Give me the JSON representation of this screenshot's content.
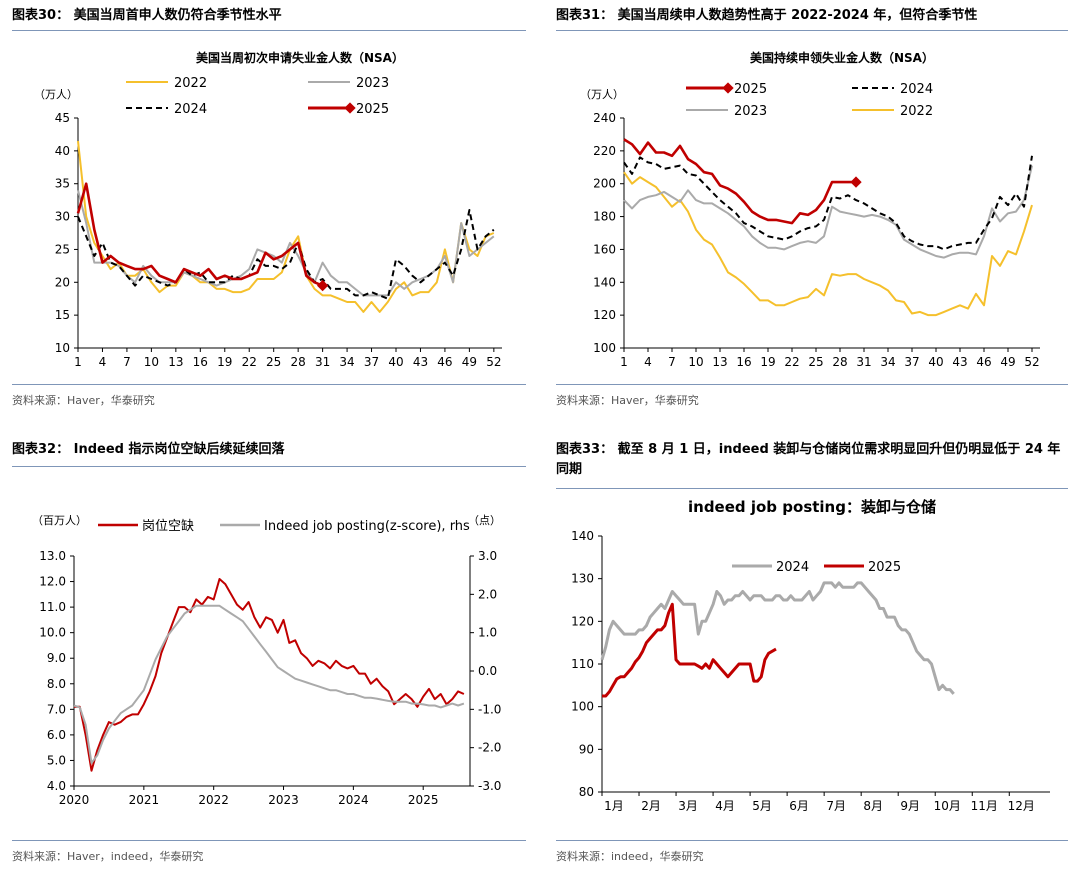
{
  "panels": [
    {
      "title": "图表30： 美国当周首申人数仍符合季节性水平",
      "source": "资料来源：Haver，华泰研究"
    },
    {
      "title": "图表31： 美国当周续申人数趋势性高于 2022-2024 年，但符合季节性",
      "source": "资料来源：Haver，华泰研究"
    },
    {
      "title": "图表32： Indeed 指示岗位空缺后续延续回落",
      "source": "资料来源：Haver，indeed，华泰研究"
    },
    {
      "title": "图表33： 截至 8 月 1 日，indeed 装卸与仓储岗位需求明显回升但仍明显低于 24 年同期",
      "source": "资料来源：indeed，华泰研究"
    }
  ],
  "colors": {
    "c2022": "#F5C02C",
    "c2023": "#AAAAAA",
    "c2024": "#000000",
    "c2025": "#C00000",
    "rule": "#7F96B8"
  },
  "chart_data": [
    {
      "type": "line",
      "title": "美国当周初次申请失业金人数（NSA）",
      "ylabel": "（万人）",
      "ylim": [
        10,
        45
      ],
      "yticks": [
        "10",
        "15",
        "20",
        "25",
        "30",
        "35",
        "40",
        "45"
      ],
      "xticks": [
        "1",
        "4",
        "7",
        "10",
        "13",
        "16",
        "19",
        "22",
        "25",
        "28",
        "31",
        "34",
        "37",
        "40",
        "43",
        "46",
        "49",
        "52"
      ],
      "xlim": [
        1,
        53
      ],
      "legend": [
        "2022",
        "2023",
        "2024",
        "2025"
      ],
      "series": [
        {
          "name": "2022",
          "key": "c2022",
          "style": "solid",
          "x_start": 1,
          "values": [
            41.5,
            30,
            26,
            24,
            22,
            23,
            21,
            21,
            22,
            20,
            18.5,
            19.5,
            19.5,
            21.5,
            21,
            20,
            20,
            19,
            19,
            18.5,
            18.5,
            19,
            20.5,
            20.5,
            20.5,
            21.5,
            25,
            27,
            21,
            19,
            18,
            18,
            17.5,
            17,
            17,
            15.5,
            17,
            15.5,
            17,
            19,
            20,
            18,
            18.5,
            18.5,
            20,
            25,
            20,
            29,
            25,
            24,
            27,
            27.5
          ]
        },
        {
          "name": "2023",
          "key": "c2023",
          "style": "solid",
          "x_start": 1,
          "values": [
            34,
            29,
            23,
            23,
            23,
            22.5,
            21,
            20,
            22.5,
            21,
            20,
            20,
            20,
            21.5,
            21,
            20.5,
            20,
            19.5,
            20,
            20.5,
            21,
            22,
            25,
            24.5,
            24,
            23,
            26,
            24,
            21.5,
            20,
            23,
            21,
            20,
            20,
            19,
            18,
            18,
            18,
            18,
            20,
            19,
            20,
            20.5,
            21,
            22,
            24,
            20,
            29,
            24,
            25,
            26,
            27
          ]
        },
        {
          "name": "2024",
          "key": "c2024",
          "style": "dash",
          "x_start": 1,
          "values": [
            30,
            27,
            24,
            26,
            23,
            22.5,
            21,
            19.5,
            21,
            20.5,
            20,
            19.5,
            20,
            22,
            21,
            21.5,
            20,
            20,
            20,
            21,
            20.5,
            21,
            23.5,
            22.5,
            22.5,
            22,
            23,
            26,
            22,
            20,
            20.5,
            19,
            19,
            19,
            18,
            18,
            18.5,
            18,
            17.5,
            23.5,
            22.5,
            21,
            20,
            21,
            22,
            23,
            21,
            25,
            31,
            25,
            27,
            28
          ]
        },
        {
          "name": "2025",
          "key": "c2025",
          "style": "solid",
          "x_start": 1,
          "values": [
            30.5,
            35,
            28,
            23,
            24,
            23,
            22.5,
            22,
            22,
            22.5,
            21,
            20.5,
            20,
            22,
            21.5,
            21,
            22,
            20.5,
            21,
            20.5,
            20.5,
            21,
            21.5,
            24.5,
            23.5,
            24,
            25,
            26,
            21,
            20,
            19.5
          ]
        }
      ]
    },
    {
      "type": "line",
      "title": "美国持续申领失业金人数（NSA）",
      "ylabel": "（万人）",
      "ylim": [
        100,
        240
      ],
      "yticks": [
        "100",
        "120",
        "140",
        "160",
        "180",
        "200",
        "220",
        "240"
      ],
      "xticks": [
        "1",
        "4",
        "7",
        "10",
        "13",
        "16",
        "19",
        "22",
        "25",
        "28",
        "31",
        "34",
        "37",
        "40",
        "43",
        "46",
        "49",
        "52"
      ],
      "xlim": [
        1,
        53
      ],
      "legend": [
        "2025",
        "2024",
        "2023",
        "2022"
      ],
      "series": [
        {
          "name": "2022",
          "key": "c2022",
          "style": "solid",
          "x_start": 1,
          "values": [
            207,
            200,
            204,
            201,
            198,
            192,
            186,
            190,
            183,
            172,
            166,
            163,
            155,
            146,
            143,
            139,
            134,
            129,
            129,
            126,
            126,
            128,
            130,
            131,
            136,
            132,
            145,
            144,
            145,
            145,
            142,
            140,
            138,
            135,
            129,
            128,
            121,
            122,
            120,
            120,
            122,
            124,
            126,
            124,
            133,
            126,
            156,
            150,
            159,
            157,
            171,
            187
          ]
        },
        {
          "name": "2023",
          "key": "c2023",
          "style": "solid",
          "x_start": 1,
          "values": [
            190,
            185,
            190,
            192,
            193,
            195,
            192,
            189,
            196,
            190,
            188,
            188,
            185,
            182,
            178,
            174,
            168,
            164,
            161,
            161,
            160,
            162,
            164,
            165,
            164,
            168,
            186,
            183,
            182,
            181,
            180,
            181,
            180,
            178,
            175,
            166,
            163,
            160,
            158,
            156,
            155,
            157,
            158,
            158,
            157,
            168,
            185,
            177,
            182,
            183,
            190,
            211
          ]
        },
        {
          "name": "2024",
          "key": "c2024",
          "style": "dash",
          "x_start": 1,
          "values": [
            213,
            206,
            216,
            213,
            212,
            209,
            210,
            211,
            206,
            205,
            200,
            195,
            190,
            186,
            182,
            176,
            174,
            171,
            168,
            167,
            166,
            168,
            171,
            173,
            174,
            178,
            192,
            191,
            193,
            190,
            188,
            185,
            182,
            180,
            176,
            168,
            165,
            163,
            162,
            162,
            160,
            162,
            163,
            164,
            164,
            172,
            179,
            192,
            187,
            194,
            186,
            217
          ]
        },
        {
          "name": "2025",
          "key": "c2025",
          "style": "solid",
          "x_start": 1,
          "values": [
            227,
            224,
            218,
            225,
            219,
            219,
            217,
            223,
            215,
            212,
            207,
            206,
            199,
            197,
            194,
            189,
            183,
            180,
            178,
            178,
            177,
            176,
            182,
            181,
            184,
            190,
            201,
            201,
            201,
            201
          ]
        }
      ]
    },
    {
      "type": "line",
      "ylabel_left": "（百万人）",
      "ylabel_right": "（点）",
      "ylim_left": [
        4.0,
        13.0
      ],
      "ylim_right": [
        -3.0,
        3.0
      ],
      "yticks_left": [
        "4.0",
        "5.0",
        "6.0",
        "7.0",
        "8.0",
        "9.0",
        "10.0",
        "11.0",
        "12.0",
        "13.0"
      ],
      "yticks_right": [
        "-3.0",
        "-2.0",
        "-1.0",
        "0.0",
        "1.0",
        "2.0",
        "3.0"
      ],
      "xticks": [
        "2020",
        "2021",
        "2022",
        "2023",
        "2024",
        "2025"
      ],
      "xlim": [
        2020,
        2025.67
      ],
      "legend": [
        "岗位空缺",
        "Indeed job posting(z-score), rhs"
      ],
      "series": [
        {
          "name": "岗位空缺",
          "key": "c2025",
          "axis": "left",
          "x_start": 2020.0,
          "step": 0.08333,
          "values": [
            7.1,
            7.1,
            6.0,
            4.6,
            5.4,
            6.0,
            6.5,
            6.4,
            6.5,
            6.7,
            6.8,
            6.8,
            7.2,
            7.7,
            8.3,
            9.2,
            9.8,
            10.4,
            11.0,
            11.0,
            10.8,
            11.3,
            11.1,
            11.4,
            11.3,
            12.1,
            11.9,
            11.5,
            11.1,
            10.9,
            11.2,
            10.6,
            10.2,
            10.6,
            10.5,
            10.0,
            10.5,
            9.6,
            9.7,
            9.2,
            9.0,
            8.7,
            8.9,
            8.8,
            8.6,
            8.9,
            8.7,
            8.6,
            8.7,
            8.4,
            8.4,
            8.0,
            8.2,
            7.9,
            7.7,
            7.2,
            7.4,
            7.6,
            7.4,
            7.1,
            7.5,
            7.8,
            7.4,
            7.6,
            7.2,
            7.4,
            7.7,
            7.6
          ]
        },
        {
          "name": "Indeed job posting(z-score), rhs",
          "key": "c2023",
          "axis": "right",
          "x_start": 2020.0,
          "step": 0.08333,
          "values": [
            -0.9,
            -0.95,
            -1.4,
            -2.4,
            -2.2,
            -1.8,
            -1.5,
            -1.3,
            -1.1,
            -1.0,
            -0.9,
            -0.7,
            -0.5,
            -0.1,
            0.3,
            0.6,
            0.9,
            1.1,
            1.3,
            1.5,
            1.6,
            1.7,
            1.7,
            1.7,
            1.7,
            1.7,
            1.6,
            1.5,
            1.4,
            1.3,
            1.1,
            0.9,
            0.7,
            0.5,
            0.3,
            0.1,
            0.0,
            -0.1,
            -0.2,
            -0.25,
            -0.3,
            -0.35,
            -0.4,
            -0.45,
            -0.5,
            -0.5,
            -0.55,
            -0.6,
            -0.6,
            -0.65,
            -0.7,
            -0.7,
            -0.72,
            -0.75,
            -0.78,
            -0.8,
            -0.8,
            -0.8,
            -0.85,
            -0.85,
            -0.87,
            -0.9,
            -0.9,
            -0.95,
            -0.9,
            -0.85,
            -0.9,
            -0.85
          ]
        }
      ]
    },
    {
      "type": "line",
      "title": "indeed job posting：装卸与仓储",
      "ylim": [
        80,
        140
      ],
      "yticks": [
        "80",
        "90",
        "100",
        "110",
        "120",
        "130",
        "140"
      ],
      "xticks": [
        "1月",
        "2月",
        "3月",
        "4月",
        "5月",
        "6月",
        "7月",
        "8月",
        "9月",
        "10月",
        "11月",
        "12月"
      ],
      "xlim": [
        1,
        13.1
      ],
      "legend": [
        "2024",
        "2025"
      ],
      "series": [
        {
          "name": "2024",
          "key": "c2023",
          "style": "solid",
          "x_start": 1.0,
          "step": 0.1,
          "values": [
            111,
            114,
            118,
            120,
            119,
            118,
            117,
            117,
            117,
            117,
            118,
            118,
            119,
            121,
            122,
            123,
            124,
            123,
            125,
            127,
            126,
            125,
            124,
            124,
            124,
            124,
            117,
            120,
            120,
            122,
            124,
            127,
            126,
            124,
            125,
            125,
            126,
            126,
            127,
            126,
            125,
            126,
            126,
            126,
            125,
            125,
            125,
            126,
            126,
            125,
            125,
            126,
            125,
            125,
            125,
            126,
            127,
            125,
            126,
            127,
            129,
            129,
            129,
            128,
            129,
            128,
            128,
            128,
            128,
            129,
            129,
            128,
            127,
            126,
            125,
            123,
            123,
            121,
            121,
            121,
            119,
            118,
            118,
            117,
            115,
            113,
            112,
            111,
            111,
            110,
            107,
            104,
            105,
            104,
            104,
            103
          ]
        },
        {
          "name": "2025",
          "key": "c2025",
          "style": "solid",
          "x_start": 1.0,
          "step": 0.1,
          "values": [
            102.5,
            102.5,
            103.5,
            105,
            106.5,
            107,
            107,
            108,
            109,
            110.5,
            111.5,
            113,
            115,
            116,
            117,
            118,
            118,
            119,
            122,
            124,
            111,
            110,
            110,
            110,
            110,
            110,
            109.5,
            109,
            110,
            109,
            111,
            110,
            109,
            108,
            107,
            108,
            109,
            110,
            110,
            110,
            110,
            106,
            106,
            107,
            111,
            112.5,
            113,
            113.5
          ]
        }
      ]
    }
  ]
}
